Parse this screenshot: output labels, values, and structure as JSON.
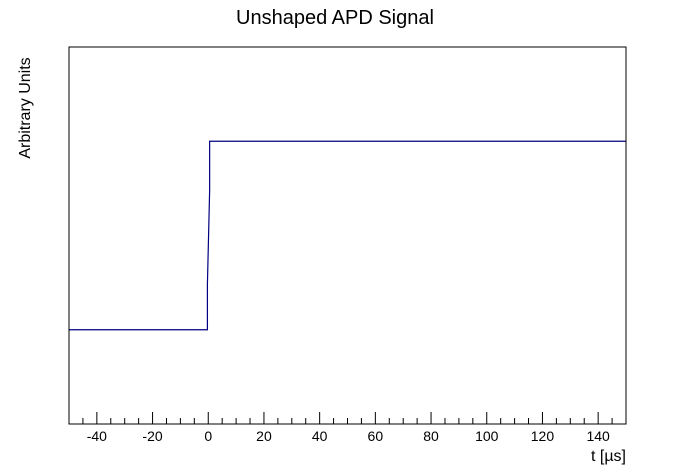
{
  "chart_data": {
    "type": "line",
    "title": "Unshaped APD Signal",
    "xlabel": "t [µs]",
    "ylabel": "Arbitrary Units",
    "xlim": [
      -50,
      150
    ],
    "ylim": [
      0,
      1
    ],
    "x_ticks": [
      -40,
      -20,
      0,
      20,
      40,
      60,
      80,
      100,
      120,
      140
    ],
    "x_minor_step": 5,
    "show_y_ticks": false,
    "grid": false,
    "legend": "none",
    "series": [
      {
        "color": "#000080",
        "x": [
          -50,
          -0.3,
          -0.3,
          0.5,
          0.5,
          150
        ],
        "y": [
          0.25,
          0.25,
          0.37,
          0.62,
          0.75,
          0.75
        ]
      }
    ]
  }
}
